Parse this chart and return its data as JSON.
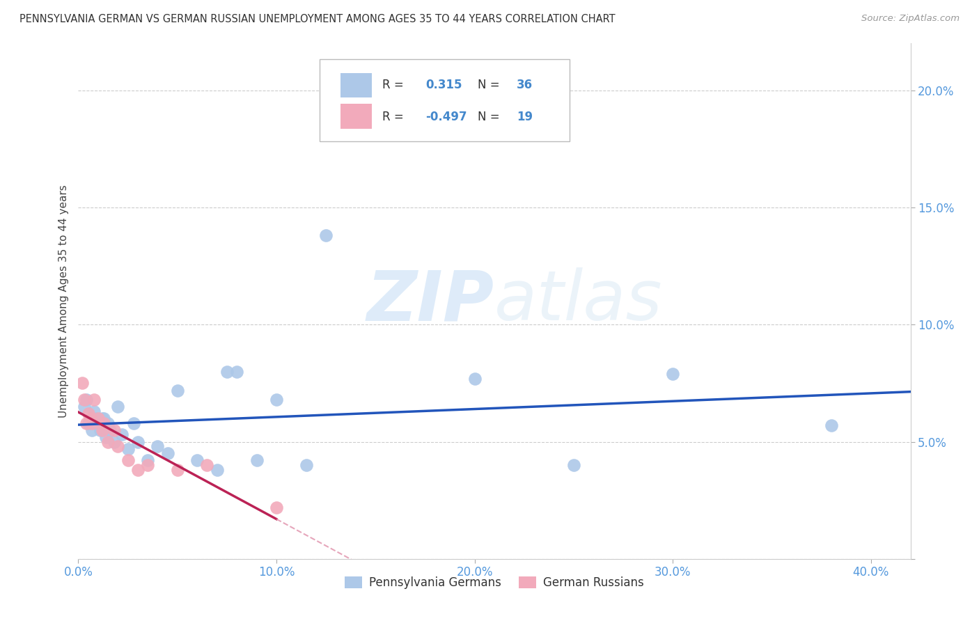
{
  "title": "PENNSYLVANIA GERMAN VS GERMAN RUSSIAN UNEMPLOYMENT AMONG AGES 35 TO 44 YEARS CORRELATION CHART",
  "source": "Source: ZipAtlas.com",
  "ylabel": "Unemployment Among Ages 35 to 44 years",
  "xlim": [
    0.0,
    0.42
  ],
  "ylim": [
    0.0,
    0.22
  ],
  "xticks": [
    0.0,
    0.1,
    0.2,
    0.3,
    0.4
  ],
  "xticklabels": [
    "0.0%",
    "10.0%",
    "20.0%",
    "30.0%",
    "40.0%"
  ],
  "yticks": [
    0.0,
    0.05,
    0.1,
    0.15,
    0.2
  ],
  "yticklabels": [
    "",
    "5.0%",
    "10.0%",
    "15.0%",
    "20.0%"
  ],
  "blue_color": "#adc8e8",
  "pink_color": "#f2aabb",
  "blue_line_color": "#2255bb",
  "pink_line_color": "#bb2255",
  "pink_line_dashed_color": "#e090aa",
  "watermark_zip": "ZIP",
  "watermark_atlas": "atlas",
  "legend_R_blue": "0.315",
  "legend_N_blue": "36",
  "legend_R_pink": "-0.497",
  "legend_N_pink": "19",
  "pa_german_x": [
    0.003,
    0.004,
    0.005,
    0.006,
    0.007,
    0.008,
    0.009,
    0.01,
    0.011,
    0.012,
    0.013,
    0.014,
    0.015,
    0.016,
    0.018,
    0.02,
    0.022,
    0.025,
    0.028,
    0.03,
    0.035,
    0.04,
    0.045,
    0.05,
    0.06,
    0.07,
    0.075,
    0.08,
    0.09,
    0.1,
    0.115,
    0.125,
    0.2,
    0.25,
    0.3,
    0.38
  ],
  "pa_german_y": [
    0.065,
    0.068,
    0.058,
    0.06,
    0.055,
    0.063,
    0.06,
    0.058,
    0.055,
    0.06,
    0.06,
    0.052,
    0.058,
    0.055,
    0.05,
    0.065,
    0.053,
    0.047,
    0.058,
    0.05,
    0.042,
    0.048,
    0.045,
    0.072,
    0.042,
    0.038,
    0.08,
    0.08,
    0.042,
    0.068,
    0.04,
    0.138,
    0.077,
    0.04,
    0.079,
    0.057
  ],
  "gr_x": [
    0.002,
    0.003,
    0.004,
    0.005,
    0.006,
    0.007,
    0.008,
    0.01,
    0.012,
    0.013,
    0.015,
    0.018,
    0.02,
    0.025,
    0.03,
    0.035,
    0.05,
    0.065,
    0.1
  ],
  "gr_y": [
    0.075,
    0.068,
    0.058,
    0.062,
    0.06,
    0.058,
    0.068,
    0.06,
    0.055,
    0.058,
    0.05,
    0.055,
    0.048,
    0.042,
    0.038,
    0.04,
    0.038,
    0.04,
    0.022
  ]
}
